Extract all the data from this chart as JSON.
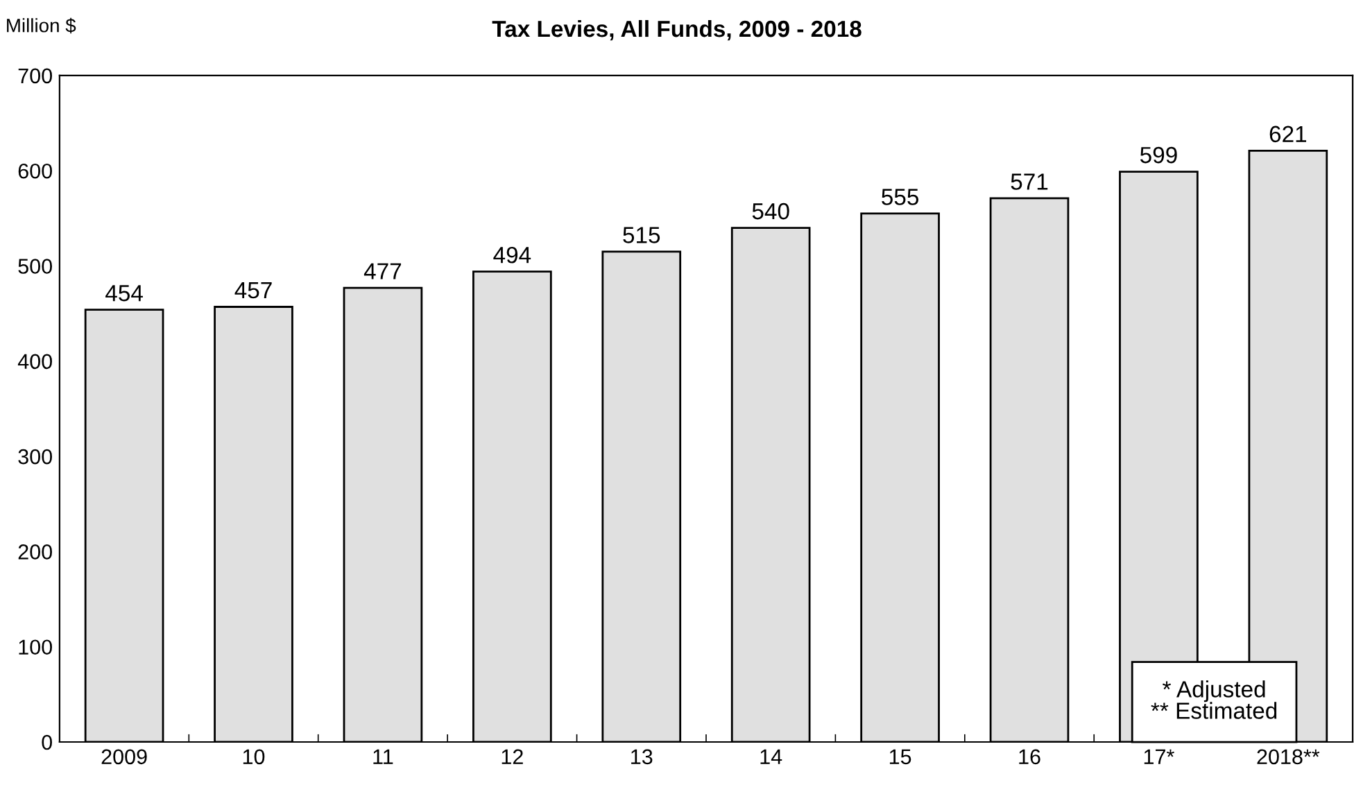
{
  "chart_data": {
    "type": "bar",
    "title": "Tax Levies, All Funds, 2009 - 2018",
    "ylabel": "Million $",
    "categories": [
      "2009",
      "10",
      "11",
      "12",
      "13",
      "14",
      "15",
      "16",
      "17*",
      "2018**"
    ],
    "values": [
      454,
      457,
      477,
      494,
      515,
      540,
      555,
      571,
      599,
      621
    ],
    "color": "#e0e0e0",
    "data_labels": true,
    "ylim": [
      0,
      700
    ],
    "yticks": [
      0,
      100,
      200,
      300,
      400,
      500,
      600,
      700
    ],
    "grid": false,
    "annotations": [
      "* Adjusted",
      "** Estimated"
    ]
  }
}
